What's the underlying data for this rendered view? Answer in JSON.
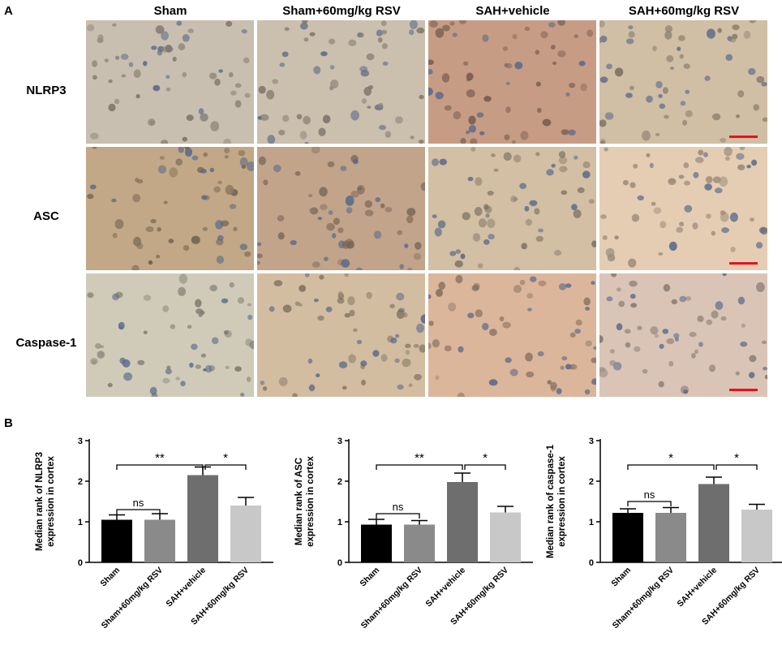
{
  "panels": {
    "a": "A",
    "b": "B"
  },
  "columns": [
    "Sham",
    "Sham+60mg/kg RSV",
    "SAH+vehicle",
    "SAH+60mg/kg RSV"
  ],
  "rows": [
    "NLRP3",
    "ASC",
    "Caspase-1"
  ],
  "micrograph_tints": [
    [
      "#c9bfb0",
      "#cbbfad",
      "#c79c84",
      "#d0bea5"
    ],
    [
      "#c2a886",
      "#c2a48b",
      "#d2bfa4",
      "#e5cdb4"
    ],
    [
      "#d0cbb9",
      "#d3bda0",
      "#dbb69b",
      "#d9c4b6"
    ]
  ],
  "scale_bar_color": "#e8101c",
  "chart_data": [
    {
      "type": "bar",
      "ylabel_lines": [
        "Median rank of NLRP3",
        "expression in cortex"
      ],
      "categories": [
        "Sham",
        "Sham+60mg/kg RSV",
        "SAH+vehicle",
        "SAH+60mg/kg RSV"
      ],
      "values": [
        1.05,
        1.05,
        2.15,
        1.4
      ],
      "errors": [
        0.12,
        0.15,
        0.2,
        0.2
      ],
      "colors": [
        "#000000",
        "#8a8a8a",
        "#6e6e6e",
        "#c8c8c8"
      ],
      "ylim": [
        0,
        3
      ],
      "yticks": [
        "0",
        "1",
        "2",
        "3"
      ],
      "brackets": [
        {
          "from": 0,
          "to": 2,
          "y": 2.4,
          "label": "**"
        },
        {
          "from": 2,
          "to": 3,
          "y": 2.4,
          "label": "*"
        },
        {
          "from": 0,
          "to": 1,
          "y": 1.3,
          "label": "ns"
        }
      ]
    },
    {
      "type": "bar",
      "ylabel_lines": [
        "Median rank of ASC",
        "expression in cortex"
      ],
      "categories": [
        "Sham",
        "Sham+60mg/kg RSV",
        "SAH+vehicle",
        "SAH+60mg/kg RSV"
      ],
      "values": [
        0.93,
        0.93,
        1.98,
        1.23
      ],
      "errors": [
        0.13,
        0.1,
        0.22,
        0.15
      ],
      "colors": [
        "#000000",
        "#8a8a8a",
        "#6e6e6e",
        "#c8c8c8"
      ],
      "ylim": [
        0,
        3
      ],
      "yticks": [
        "0",
        "1",
        "2",
        "3"
      ],
      "brackets": [
        {
          "from": 0,
          "to": 2,
          "y": 2.4,
          "label": "**"
        },
        {
          "from": 2,
          "to": 3,
          "y": 2.4,
          "label": "*"
        },
        {
          "from": 0,
          "to": 1,
          "y": 1.2,
          "label": "ns"
        }
      ]
    },
    {
      "type": "bar",
      "ylabel_lines": [
        "Median rank of caspase-1",
        "expression in cortex"
      ],
      "categories": [
        "Sham",
        "Sham+60mg/kg RSV",
        "SAH+vehicle",
        "SAH+60mg/kg RSV"
      ],
      "values": [
        1.22,
        1.22,
        1.93,
        1.3
      ],
      "errors": [
        0.1,
        0.13,
        0.17,
        0.13
      ],
      "colors": [
        "#000000",
        "#8a8a8a",
        "#6e6e6e",
        "#c8c8c8"
      ],
      "ylim": [
        0,
        3
      ],
      "yticks": [
        "0",
        "1",
        "2",
        "3"
      ],
      "brackets": [
        {
          "from": 0,
          "to": 2,
          "y": 2.4,
          "label": "*"
        },
        {
          "from": 2,
          "to": 3,
          "y": 2.4,
          "label": "*"
        },
        {
          "from": 0,
          "to": 1,
          "y": 1.5,
          "label": "ns"
        }
      ]
    }
  ]
}
